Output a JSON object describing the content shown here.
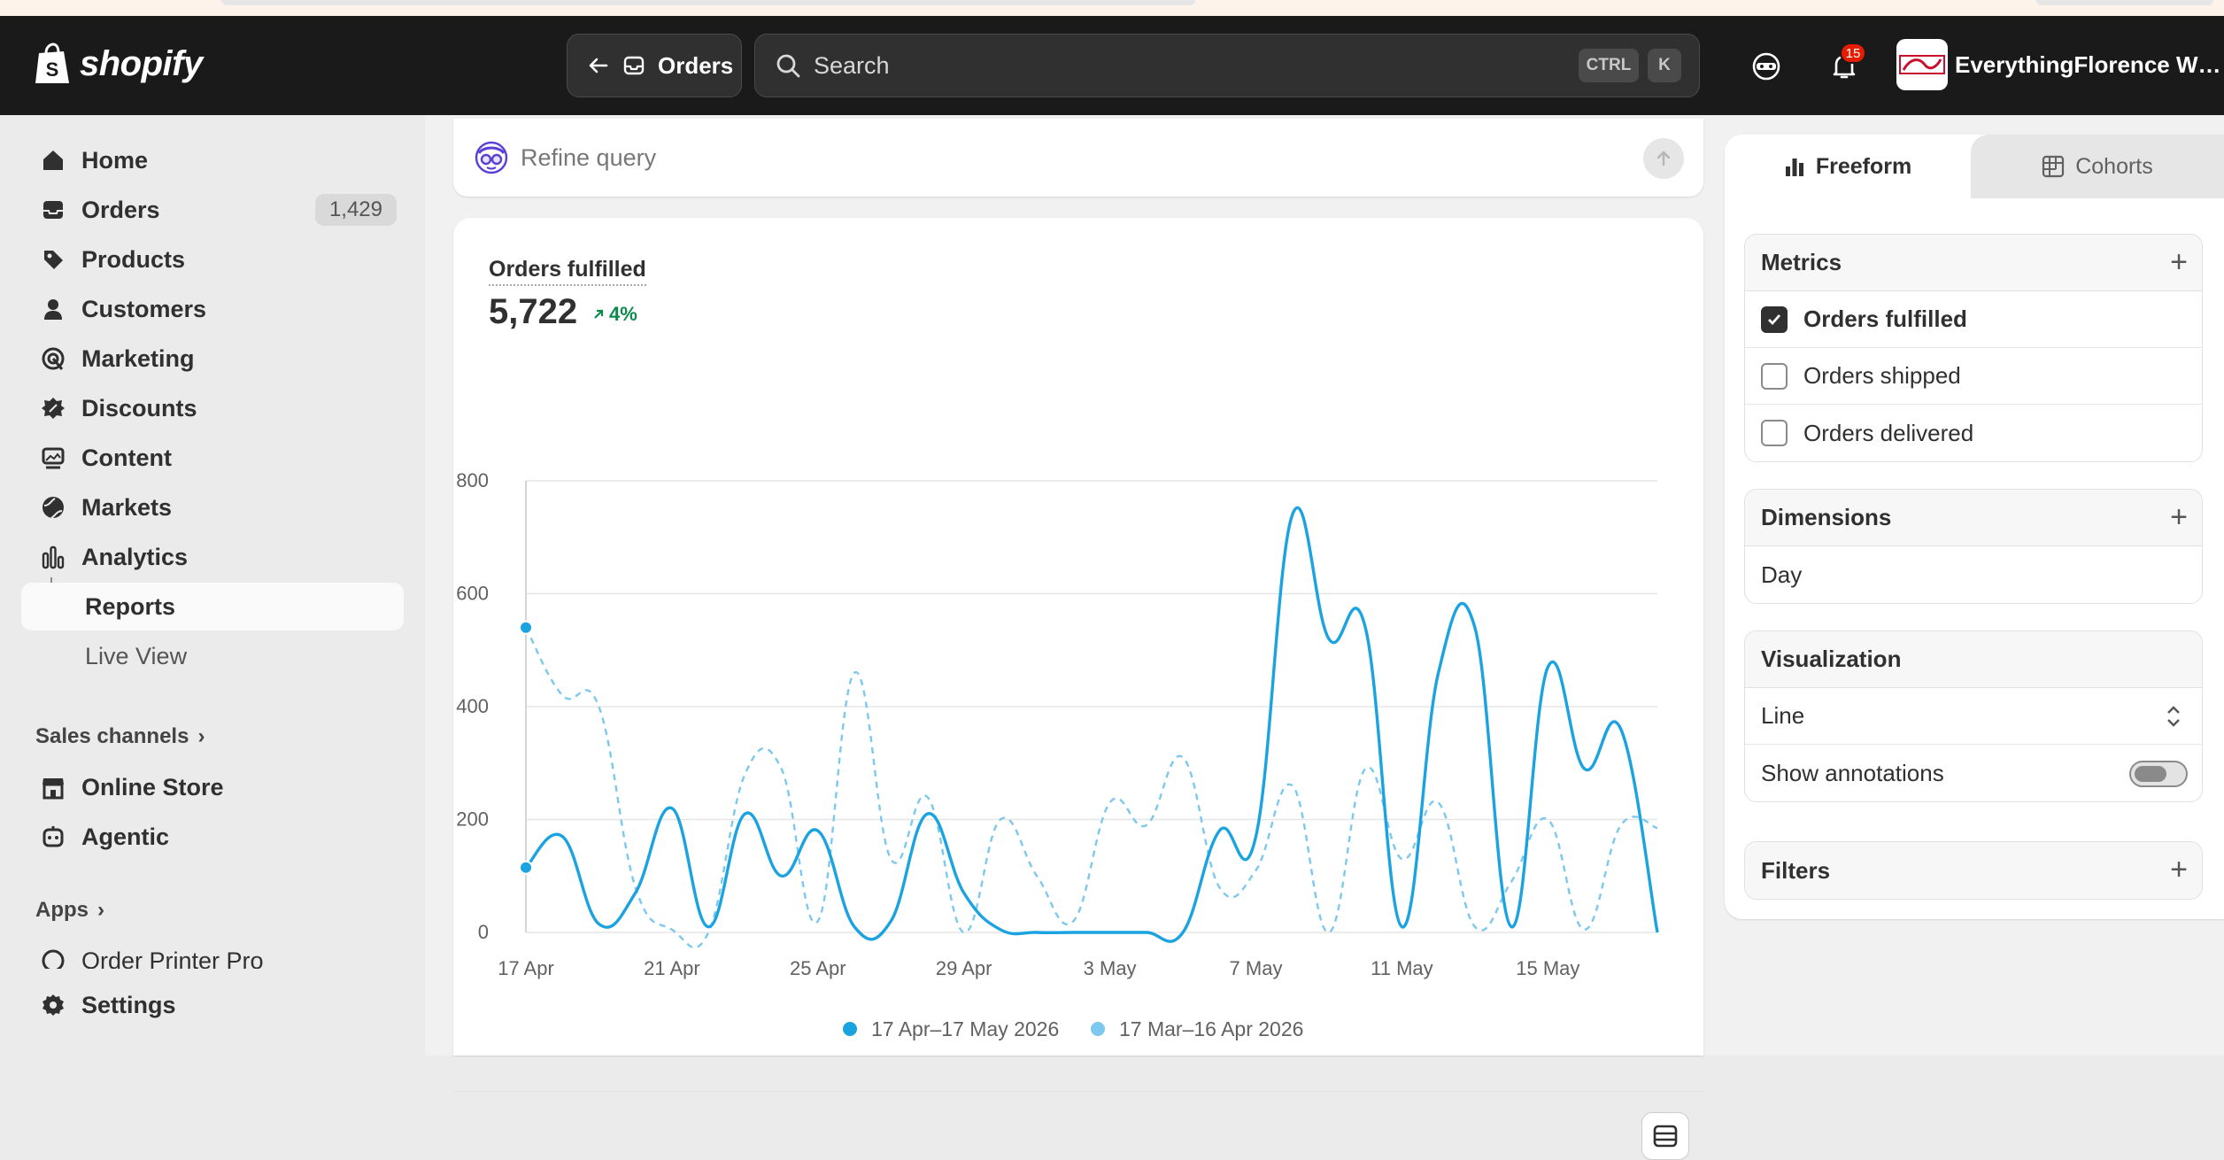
{
  "app": {
    "name": "shopify"
  },
  "topbar": {
    "back_label": "Orders",
    "search_placeholder": "Search",
    "shortcut_ctrl": "CTRL",
    "shortcut_k": "K",
    "notification_count": "15",
    "store_name": "EverythingFlorence Whol..."
  },
  "sidebar": {
    "items": [
      {
        "label": "Home",
        "icon": "home-icon"
      },
      {
        "label": "Orders",
        "icon": "orders-icon",
        "count": "1,429"
      },
      {
        "label": "Products",
        "icon": "tag-icon"
      },
      {
        "label": "Customers",
        "icon": "person-icon"
      },
      {
        "label": "Marketing",
        "icon": "target-icon"
      },
      {
        "label": "Discounts",
        "icon": "discount-icon"
      },
      {
        "label": "Content",
        "icon": "content-icon"
      },
      {
        "label": "Markets",
        "icon": "globe-icon"
      },
      {
        "label": "Analytics",
        "icon": "analytics-icon"
      }
    ],
    "sub_items": [
      {
        "label": "Reports"
      },
      {
        "label": "Live View"
      }
    ],
    "sales_channels_title": "Sales channels",
    "channels": [
      {
        "label": "Online Store",
        "icon": "store-icon"
      },
      {
        "label": "Agentic",
        "icon": "agentic-icon"
      }
    ],
    "apps_title": "Apps",
    "apps": [
      {
        "label": "Order Printer Pro",
        "icon": "app-icon"
      }
    ],
    "settings_label": "Settings"
  },
  "main": {
    "refine_placeholder": "Refine query",
    "metric_title": "Orders fulfilled",
    "metric_value": "5,722",
    "metric_delta": "4%"
  },
  "chart_data": {
    "type": "line",
    "title": "Orders fulfilled",
    "xlabel": "",
    "ylabel": "",
    "ylim": [
      0,
      800
    ],
    "yticks": [
      "0",
      "200",
      "400",
      "600",
      "800"
    ],
    "xtick_labels": [
      "17 Apr",
      "21 Apr",
      "25 Apr",
      "29 Apr",
      "3 May",
      "7 May",
      "11 May",
      "15 May"
    ],
    "legend_placement": "bottom",
    "grid": true,
    "series": [
      {
        "name": "17 Apr–17 May 2026",
        "color": "#1aa3e0",
        "style": "solid",
        "values": [
          115,
          170,
          15,
          70,
          220,
          10,
          210,
          100,
          180,
          10,
          20,
          210,
          70,
          5,
          0,
          0,
          0,
          0,
          0,
          180,
          170,
          740,
          520,
          540,
          10,
          460,
          540,
          10,
          470,
          290,
          360,
          0
        ]
      },
      {
        "name": "17 Mar–16 Apr 2026",
        "color": "#7cc8ee",
        "style": "dashed",
        "values": [
          540,
          420,
          400,
          80,
          5,
          0,
          280,
          290,
          20,
          460,
          130,
          240,
          0,
          200,
          100,
          20,
          230,
          190,
          310,
          80,
          110,
          260,
          0,
          290,
          130,
          230,
          10,
          90,
          200,
          5,
          190,
          185
        ]
      }
    ]
  },
  "right_panel": {
    "tab_freeform": "Freeform",
    "tab_cohorts": "Cohorts",
    "metrics_title": "Metrics",
    "metrics": [
      {
        "label": "Orders fulfilled",
        "checked": true
      },
      {
        "label": "Orders shipped",
        "checked": false
      },
      {
        "label": "Orders delivered",
        "checked": false
      }
    ],
    "dimensions_title": "Dimensions",
    "dimension_value": "Day",
    "visualization_title": "Visualization",
    "visualization_value": "Line",
    "show_annotations_label": "Show annotations",
    "filters_title": "Filters"
  }
}
